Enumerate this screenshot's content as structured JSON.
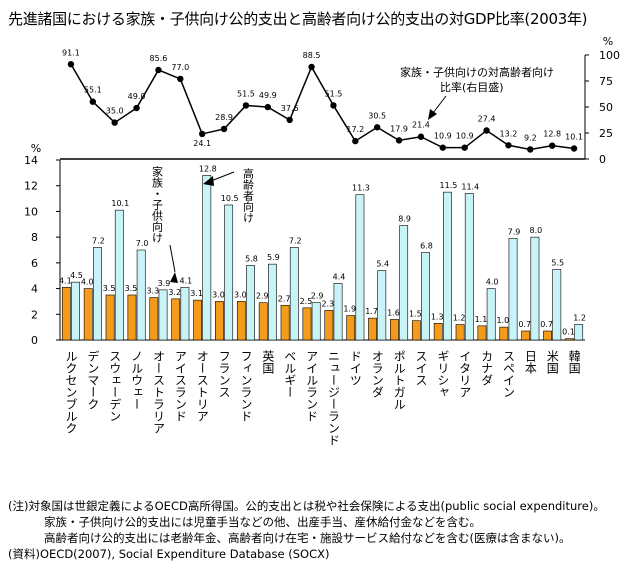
{
  "chart_data": {
    "type": "bar+line",
    "title": "先進諸国における家族・子供向け公的支出と高齢者向け公的支出の対GDP比率(2003年)",
    "left_axis": {
      "unit": "%",
      "ylim": [
        0,
        14
      ],
      "ticks": [
        0,
        2,
        4,
        6,
        8,
        10,
        12,
        14
      ]
    },
    "right_axis": {
      "unit": "%",
      "ylim": [
        0,
        100
      ],
      "ticks": [
        0,
        25,
        50,
        75,
        100
      ]
    },
    "categories": [
      "ルクセンブルク",
      "デンマーク",
      "スウェーデン",
      "ノルウェー",
      "オーストラリア",
      "アイスランド",
      "オーストリア",
      "フランス",
      "フィンランド",
      "英国",
      "ベルギー",
      "アイルランド",
      "ニュージーランド",
      "ドイツ",
      "オランダ",
      "ポルトガル",
      "スイス",
      "ギリシャ",
      "イタリア",
      "カナダ",
      "スペイン",
      "日本",
      "米国",
      "韓国"
    ],
    "series": [
      {
        "name": "家族・子供向け",
        "type": "bar",
        "axis": "left",
        "color": "#f59b1c",
        "values": [
          4.1,
          4.0,
          3.5,
          3.5,
          3.3,
          3.2,
          3.1,
          3.0,
          3.0,
          2.9,
          2.7,
          2.5,
          2.3,
          1.9,
          1.7,
          1.6,
          1.5,
          1.3,
          1.2,
          1.1,
          1.0,
          0.7,
          0.7,
          0.1
        ]
      },
      {
        "name": "高齢者向け",
        "type": "bar",
        "axis": "left",
        "color": "#c8f4f8",
        "values": [
          4.5,
          7.2,
          10.1,
          7.0,
          3.9,
          4.1,
          12.8,
          10.5,
          5.8,
          5.9,
          7.2,
          2.9,
          4.4,
          11.3,
          5.4,
          8.9,
          6.8,
          11.5,
          11.4,
          4.0,
          7.9,
          8.0,
          5.5,
          1.2
        ]
      },
      {
        "name": "家族・子供向けの対高齢者向け比率(右目盛)",
        "type": "line",
        "axis": "right",
        "values": [
          91.1,
          55.1,
          35.0,
          49.0,
          85.6,
          77.0,
          24.1,
          28.9,
          51.5,
          49.9,
          37.6,
          88.5,
          51.5,
          17.2,
          30.5,
          17.9,
          21.4,
          10.9,
          10.9,
          27.4,
          13.2,
          9.2,
          12.8,
          10.1
        ]
      }
    ],
    "annotations": {
      "family": "家族・子供向け",
      "elderly": "高齢者向け",
      "ratio_line1": "家族・子供向けの対高齢者向け",
      "ratio_line2": "比率(右目盛)"
    }
  },
  "notes": {
    "line1": "(注)対象国は世銀定義によるOECD高所得国。公的支出とは税や社会保険による支出(public social expenditure)。",
    "line2": "家族・子供向け公的支出には児童手当などの他、出産手当、産休給付金などを含む。",
    "line3": "高齢者向け公的支出には老齢年金、高齢者向け在宅・施設サービス給付などを含む(医療は含まない)。",
    "line4": "(資料)OECD(2007), Social Expenditure Database (SOCX)"
  }
}
